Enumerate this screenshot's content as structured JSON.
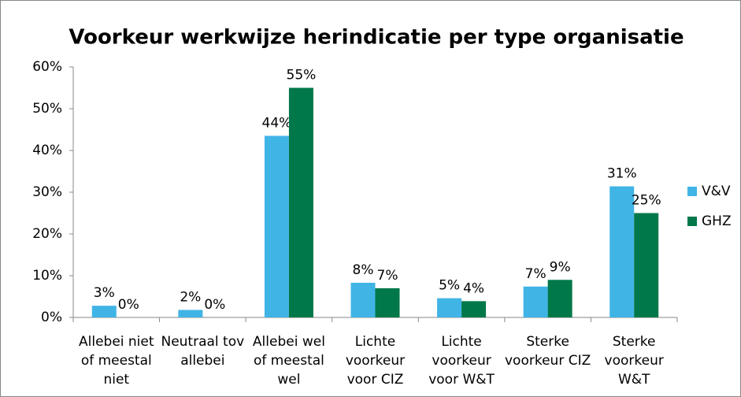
{
  "chart_data": {
    "type": "bar",
    "title": "Voorkeur werkwijze herindicatie per type organisatie",
    "categories": [
      "Allebei niet of meestal niet",
      "Neutraal tov allebei",
      "Allebei wel of meestal wel",
      "Lichte voorkeur voor CIZ",
      "Lichte voorkeur voor W&T",
      "Sterke voorkeur CIZ",
      "Sterke voorkeur W&T"
    ],
    "series": [
      {
        "name": "V&V",
        "color": "#41b4e6",
        "values": [
          2.8,
          1.8,
          43.5,
          8.3,
          4.6,
          7.4,
          31.4
        ],
        "value_labels": [
          "3%",
          "2%",
          "44%",
          "8%",
          "5%",
          "7%",
          "31%"
        ]
      },
      {
        "name": "GHZ",
        "color": "#00784a",
        "values": [
          0,
          0,
          55,
          7,
          3.9,
          9,
          25
        ],
        "value_labels": [
          "0%",
          "0%",
          "55%",
          "7%",
          "4%",
          "9%",
          "25%"
        ]
      }
    ],
    "ylim": [
      0,
      60
    ],
    "yticks": [
      {
        "value": 0,
        "label": "0%"
      },
      {
        "value": 10,
        "label": "10%"
      },
      {
        "value": 20,
        "label": "20%"
      },
      {
        "value": 30,
        "label": "30%"
      },
      {
        "value": 40,
        "label": "40%"
      },
      {
        "value": 50,
        "label": "50%"
      },
      {
        "value": 60,
        "label": "60%"
      }
    ],
    "legend": "right"
  }
}
